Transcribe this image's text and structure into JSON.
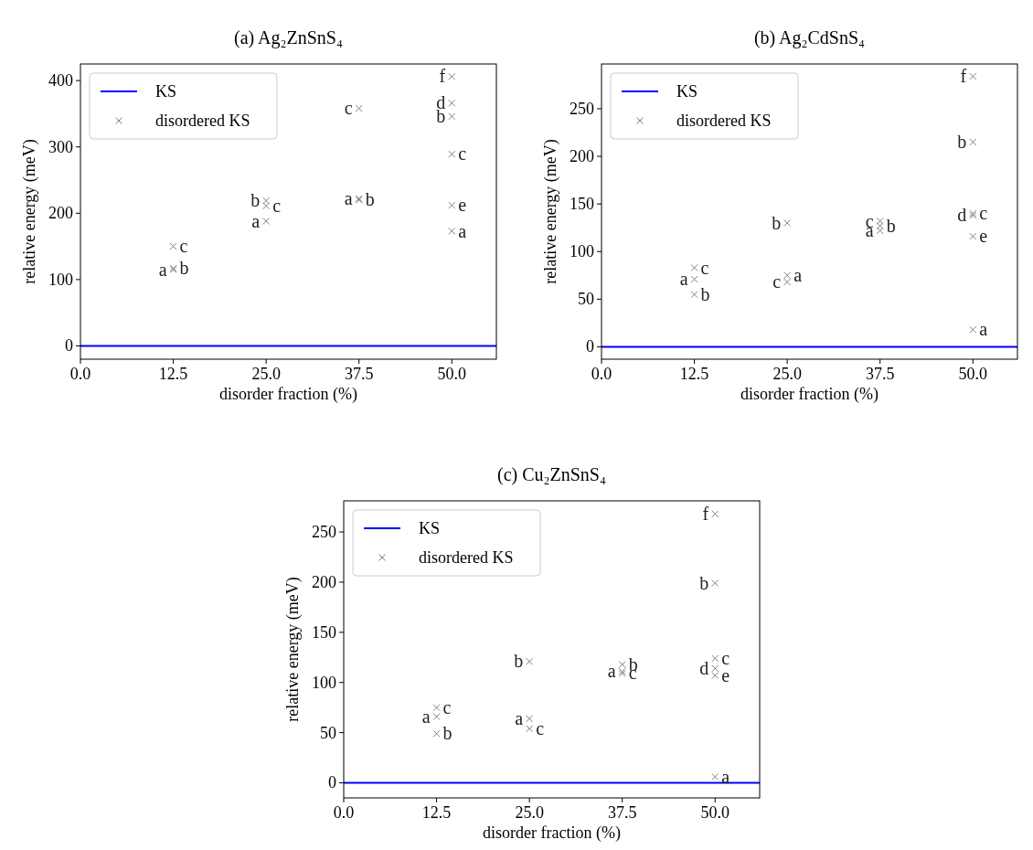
{
  "chart_data": [
    {
      "type": "scatter",
      "title": "(a) Ag₂ZnSnS₄",
      "xlabel": "disorder fraction (%)",
      "ylabel": "relative energy (meV)",
      "xlim": [
        0,
        56
      ],
      "xticks": [
        {
          "value": 0,
          "label": "0.0"
        },
        {
          "value": 12.5,
          "label": "12.5"
        },
        {
          "value": 25,
          "label": "25.0"
        },
        {
          "value": 37.5,
          "label": "37.5"
        },
        {
          "value": 50,
          "label": "50.0"
        }
      ],
      "ylim": [
        -20,
        425
      ],
      "yticks": [
        0,
        100,
        200,
        300,
        400
      ],
      "legend": "top left",
      "series": [
        {
          "name": "KS",
          "type": "line",
          "color": "#0000ff",
          "x": [
            0,
            56
          ],
          "values": [
            0,
            0
          ]
        },
        {
          "name": "disordered KS",
          "type": "scatter",
          "marker": "cross",
          "color": "#808080",
          "x": [
            12.5,
            12.5,
            12.5,
            25,
            25,
            25,
            37.5,
            37.5,
            37.5,
            50,
            50,
            50,
            50,
            50,
            50
          ],
          "values": [
            150,
            115,
            117,
            219,
            211,
            188,
            358,
            222,
            220,
            406,
            366,
            346,
            289,
            212,
            173
          ]
        }
      ],
      "annotations": [
        {
          "text": "c",
          "x": 12.5,
          "y": 150
        },
        {
          "text": "a",
          "x": 12.5,
          "y": 115
        },
        {
          "text": "b",
          "x": 12.5,
          "y": 117
        },
        {
          "text": "b",
          "x": 25,
          "y": 219
        },
        {
          "text": "c",
          "x": 25,
          "y": 211
        },
        {
          "text": "a",
          "x": 25,
          "y": 188
        },
        {
          "text": "c",
          "x": 37.5,
          "y": 358
        },
        {
          "text": "a",
          "x": 37.5,
          "y": 222
        },
        {
          "text": "b",
          "x": 37.5,
          "y": 220
        },
        {
          "text": "f",
          "x": 50,
          "y": 406
        },
        {
          "text": "d",
          "x": 50,
          "y": 366
        },
        {
          "text": "b",
          "x": 50,
          "y": 346
        },
        {
          "text": "c",
          "x": 50,
          "y": 289
        },
        {
          "text": "e",
          "x": 50,
          "y": 212
        },
        {
          "text": "a",
          "x": 50,
          "y": 173
        }
      ]
    },
    {
      "type": "scatter",
      "title": "(b) Ag₂CdSnS₄",
      "xlabel": "disorder fraction (%)",
      "ylabel": "relative energy (meV)",
      "xlim": [
        0,
        56
      ],
      "xticks": [
        {
          "value": 0,
          "label": "0.0"
        },
        {
          "value": 12.5,
          "label": "12.5"
        },
        {
          "value": 25,
          "label": "25.0"
        },
        {
          "value": 37.5,
          "label": "37.5"
        },
        {
          "value": 50,
          "label": "50.0"
        }
      ],
      "ylim": [
        -13,
        297
      ],
      "yticks": [
        0,
        50,
        100,
        150,
        200,
        250
      ],
      "legend": "top left",
      "series": [
        {
          "name": "KS",
          "type": "line",
          "color": "#0000ff",
          "x": [
            0,
            56
          ],
          "values": [
            0,
            0
          ]
        },
        {
          "name": "disordered KS",
          "type": "scatter",
          "marker": "cross",
          "color": "#808080",
          "x": [
            12.5,
            12.5,
            12.5,
            25,
            25,
            25,
            37.5,
            37.5,
            37.5,
            50,
            50,
            50,
            50,
            50,
            50
          ],
          "values": [
            71,
            83,
            55,
            130,
            75,
            68,
            132,
            122,
            127,
            284,
            215,
            138,
            140,
            116,
            18
          ]
        }
      ],
      "annotations": [
        {
          "text": "a",
          "x": 12.5,
          "y": 71
        },
        {
          "text": "c",
          "x": 12.5,
          "y": 83
        },
        {
          "text": "b",
          "x": 12.5,
          "y": 55
        },
        {
          "text": "b",
          "x": 25,
          "y": 130
        },
        {
          "text": "a",
          "x": 25,
          "y": 75
        },
        {
          "text": "c",
          "x": 25,
          "y": 68
        },
        {
          "text": "c",
          "x": 37.5,
          "y": 132
        },
        {
          "text": "a",
          "x": 37.5,
          "y": 122
        },
        {
          "text": "b",
          "x": 37.5,
          "y": 127
        },
        {
          "text": "f",
          "x": 50,
          "y": 284
        },
        {
          "text": "b",
          "x": 50,
          "y": 215
        },
        {
          "text": "d",
          "x": 50,
          "y": 138
        },
        {
          "text": "c",
          "x": 50,
          "y": 140
        },
        {
          "text": "e",
          "x": 50,
          "y": 116
        },
        {
          "text": "a",
          "x": 50,
          "y": 18
        }
      ]
    },
    {
      "type": "scatter",
      "title": "(c) Cu₂ZnSnS₄",
      "xlabel": "disorder fraction (%)",
      "ylabel": "relative energy (meV)",
      "xlim": [
        0,
        56
      ],
      "xticks": [
        {
          "value": 0,
          "label": "0.0"
        },
        {
          "value": 12.5,
          "label": "12.5"
        },
        {
          "value": 25,
          "label": "25.0"
        },
        {
          "value": 37.5,
          "label": "37.5"
        },
        {
          "value": 50,
          "label": "50.0"
        }
      ],
      "ylim": [
        -15,
        281
      ],
      "yticks": [
        0,
        50,
        100,
        150,
        200,
        250
      ],
      "legend": "top left",
      "series": [
        {
          "name": "KS",
          "type": "line",
          "color": "#0000ff",
          "x": [
            0,
            56
          ],
          "values": [
            0,
            0
          ]
        },
        {
          "name": "disordered KS",
          "type": "scatter",
          "marker": "cross",
          "color": "#808080",
          "x": [
            12.5,
            12.5,
            12.5,
            25,
            25,
            25,
            37.5,
            37.5,
            37.5,
            50,
            50,
            50,
            50,
            50,
            50
          ],
          "values": [
            66,
            75,
            49,
            121,
            64,
            54,
            111,
            118,
            109,
            268,
            199,
            124,
            114,
            107,
            6
          ]
        }
      ],
      "annotations": [
        {
          "text": "a",
          "x": 12.5,
          "y": 66
        },
        {
          "text": "c",
          "x": 12.5,
          "y": 75
        },
        {
          "text": "b",
          "x": 12.5,
          "y": 49
        },
        {
          "text": "b",
          "x": 25,
          "y": 121
        },
        {
          "text": "a",
          "x": 25,
          "y": 64
        },
        {
          "text": "c",
          "x": 25,
          "y": 54
        },
        {
          "text": "a",
          "x": 37.5,
          "y": 111
        },
        {
          "text": "b",
          "x": 37.5,
          "y": 118
        },
        {
          "text": "c",
          "x": 37.5,
          "y": 109
        },
        {
          "text": "f",
          "x": 50,
          "y": 268
        },
        {
          "text": "b",
          "x": 50,
          "y": 199
        },
        {
          "text": "c",
          "x": 50,
          "y": 124
        },
        {
          "text": "d",
          "x": 50,
          "y": 114
        },
        {
          "text": "e",
          "x": 50,
          "y": 107
        },
        {
          "text": "a",
          "x": 50,
          "y": 6
        }
      ]
    }
  ]
}
